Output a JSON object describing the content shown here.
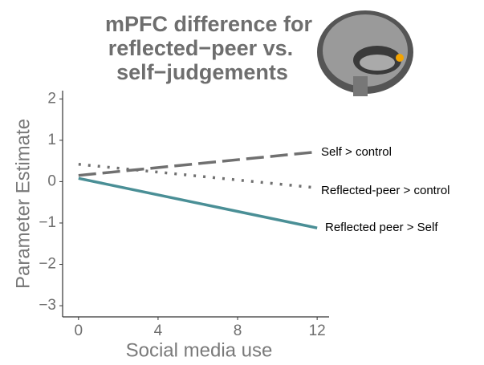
{
  "chart_data": {
    "type": "line",
    "title": [
      "mPFC difference for",
      "reflected−peer vs.",
      "self−judgements"
    ],
    "x_label": "Social media use",
    "y_label": "Parameter Estimate",
    "x": [
      0,
      12
    ],
    "series": [
      {
        "name": "Self > control",
        "color": "#707070",
        "dash": "dashed",
        "values": [
          0.15,
          0.72
        ]
      },
      {
        "name": "Reflected-peer > control",
        "color": "#707070",
        "dash": "dotted",
        "values": [
          0.42,
          -0.15
        ]
      },
      {
        "name": "Reflected peer > Self",
        "color": "#4a8f96",
        "dash": "solid",
        "values": [
          0.08,
          -1.12
        ]
      }
    ],
    "xlim": [
      -0.8,
      12.6
    ],
    "xticks": [
      0,
      4,
      8,
      12
    ],
    "ylim": [
      -3.27,
      2.2
    ],
    "yticks": [
      {
        "value": -3,
        "label": "−3"
      },
      {
        "value": -2,
        "label": "−2"
      },
      {
        "value": -1,
        "label": "−1"
      },
      0,
      1,
      2
    ]
  }
}
